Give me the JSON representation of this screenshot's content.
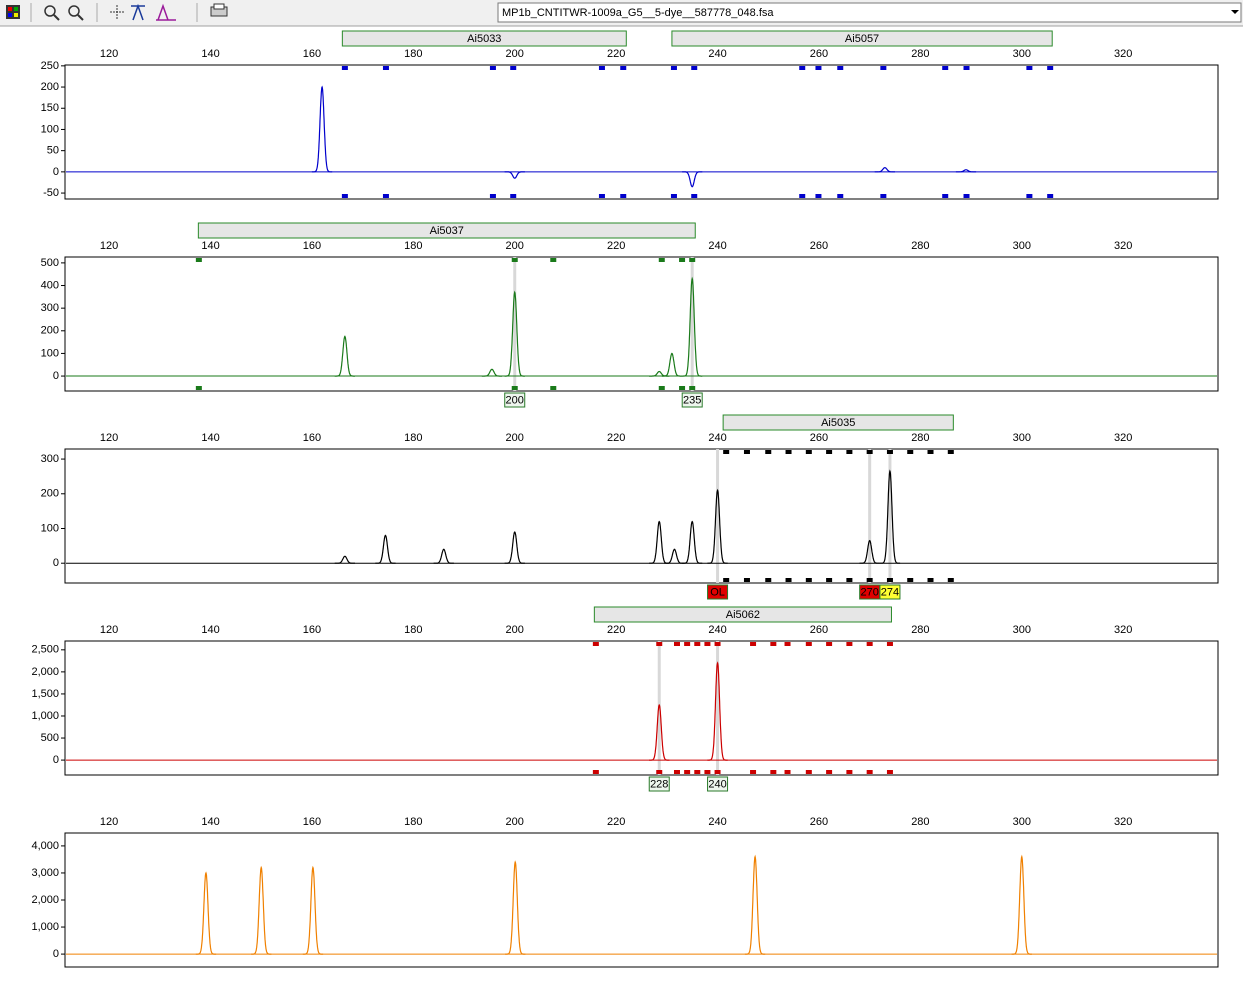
{
  "toolbar": {
    "file": "MP1b_CNTITWR-1009a_G5__5-dye__587778_048.fsa"
  },
  "chart_data": [
    {
      "type": "line",
      "color": "#0000cc",
      "xlim": [
        111.3,
        338.7
      ],
      "xticks": [
        120,
        140,
        160,
        180,
        200,
        220,
        240,
        260,
        280,
        300,
        320
      ],
      "ylim": [
        -64,
        252
      ],
      "yticks": [
        -50,
        0,
        50,
        100,
        150,
        200,
        250
      ],
      "loci": [
        {
          "name": "Ai5033",
          "start": 166,
          "end": 222
        },
        {
          "name": "Ai5057",
          "start": 231,
          "end": 306
        }
      ],
      "bins": [
        166.5,
        174.6,
        195.7,
        199.7,
        217.2,
        221.4,
        231.4,
        235.4,
        256.7,
        259.9,
        264.2,
        272.7,
        284.9,
        289.1,
        301.5,
        305.6
      ],
      "allele_calls": [],
      "peaks": {
        "x": [
          162,
          200,
          235,
          273,
          289
        ],
        "values": [
          200,
          -15,
          -35,
          10,
          5
        ]
      }
    },
    {
      "type": "line",
      "color": "#1a7a1a",
      "xlim": [
        111.3,
        338.7
      ],
      "xticks": [
        120,
        140,
        160,
        180,
        200,
        220,
        240,
        260,
        280,
        300,
        320
      ],
      "ylim": [
        -66,
        526
      ],
      "yticks": [
        0,
        100,
        200,
        300,
        400,
        500
      ],
      "loci": [
        {
          "name": "Ai5037",
          "start": 137.6,
          "end": 235.6
        }
      ],
      "bins": [
        137.7,
        200,
        207.6,
        229,
        233,
        235
      ],
      "allele_calls": [
        {
          "x": 200,
          "label": "200",
          "fill": "#eef6ee"
        },
        {
          "x": 235,
          "label": "235",
          "fill": "#eef6ee"
        }
      ],
      "peaks": {
        "x": [
          166.5,
          195.5,
          200,
          228.5,
          231,
          235
        ],
        "values": [
          175,
          30,
          370,
          20,
          100,
          430
        ]
      }
    },
    {
      "type": "line",
      "color": "#000000",
      "xlim": [
        111.3,
        338.7
      ],
      "xticks": [
        120,
        140,
        160,
        180,
        200,
        220,
        240,
        260,
        280,
        300,
        320
      ],
      "ylim": [
        -57,
        329
      ],
      "yticks": [
        0,
        100,
        200,
        300
      ],
      "loci": [
        {
          "name": "Ai5035",
          "start": 241.1,
          "end": 286.5
        }
      ],
      "bins": [
        241.7,
        245.8,
        250,
        254,
        258,
        262,
        266,
        270,
        274,
        278,
        282,
        286
      ],
      "allele_calls": [
        {
          "x": 240,
          "label": "OL",
          "fill": "#e00000"
        },
        {
          "x": 270,
          "label": "270",
          "fill": "#e00000"
        },
        {
          "x": 274,
          "label": "274",
          "fill": "#ffff33"
        }
      ],
      "peaks": {
        "x": [
          166.5,
          174.5,
          186,
          200,
          228.5,
          231.5,
          235,
          240,
          270,
          274
        ],
        "values": [
          20,
          80,
          40,
          90,
          120,
          40,
          120,
          210,
          65,
          265
        ]
      }
    },
    {
      "type": "line",
      "color": "#cc0000",
      "xlim": [
        111.3,
        338.7
      ],
      "xticks": [
        120,
        140,
        160,
        180,
        200,
        220,
        240,
        260,
        280,
        300,
        320
      ],
      "ylim": [
        -338,
        2700
      ],
      "yticks": [
        0,
        500,
        {
          "value": 1000,
          "label": "1,000"
        },
        {
          "value": 1500,
          "label": "1,500"
        },
        {
          "value": 2000,
          "label": "2,000"
        },
        {
          "value": 2500,
          "label": "2,500"
        }
      ],
      "loci": [
        {
          "name": "Ai5062",
          "start": 215.7,
          "end": 274.3
        }
      ],
      "bins": [
        216,
        228.5,
        232,
        234,
        236,
        238,
        240,
        247,
        251,
        253.8,
        258,
        262,
        266,
        270,
        274
      ],
      "allele_calls": [
        {
          "x": 228.5,
          "label": "228",
          "fill": "#eef6ee"
        },
        {
          "x": 240,
          "label": "240",
          "fill": "#eef6ee"
        }
      ],
      "peaks": {
        "x": [
          228.5,
          240
        ],
        "values": [
          1250,
          2200
        ]
      }
    },
    {
      "type": "line",
      "color": "#f08000",
      "xlim": [
        111.3,
        338.7
      ],
      "xticks": [
        120,
        140,
        160,
        180,
        200,
        220,
        240,
        260,
        280,
        300,
        320
      ],
      "ylim": [
        -477,
        4477
      ],
      "yticks": [
        0,
        {
          "value": 1000,
          "label": "1,000"
        },
        {
          "value": 2000,
          "label": "2,000"
        },
        {
          "value": 3000,
          "label": "3,000"
        },
        {
          "value": 4000,
          "label": "4,000"
        }
      ],
      "loci": [],
      "bins": [],
      "allele_calls": [],
      "peaks": {
        "x": [
          139.1,
          150,
          160.2,
          200.1,
          247.4,
          300
        ],
        "values": [
          3000,
          3200,
          3200,
          3400,
          3600,
          3600
        ]
      }
    }
  ]
}
